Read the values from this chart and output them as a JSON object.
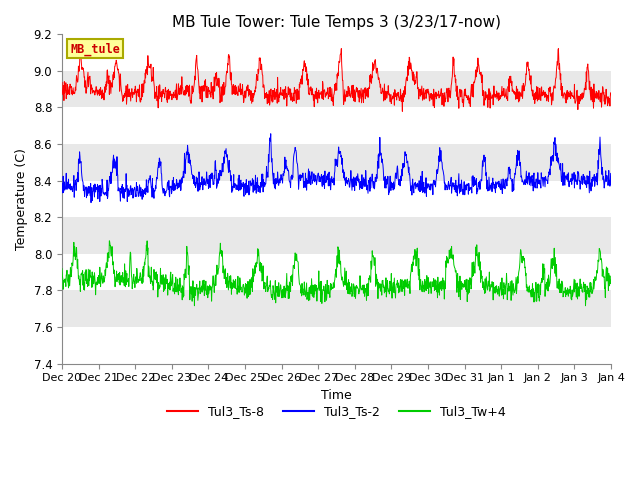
{
  "title": "MB Tule Tower: Tule Temps 3 (3/23/17-now)",
  "xlabel": "Time",
  "ylabel": "Temperature (C)",
  "ylim": [
    7.4,
    9.2
  ],
  "yticks": [
    7.4,
    7.6,
    7.8,
    8.0,
    8.2,
    8.4,
    8.6,
    8.8,
    9.0,
    9.2
  ],
  "xtick_labels": [
    "Dec 20",
    "Dec 21",
    "Dec 22",
    "Dec 23",
    "Dec 24",
    "Dec 25",
    "Dec 26",
    "Dec 27",
    "Dec 28",
    "Dec 29",
    "Dec 30",
    "Dec 31",
    "Jan 1",
    "Jan 2",
    "Jan 3",
    "Jan 4"
  ],
  "red_color": "#ff0000",
  "blue_color": "#0000ff",
  "green_color": "#00cc00",
  "legend_box_facecolor": "#ffff99",
  "legend_box_edgecolor": "#aaaa00",
  "legend_box_text": "MB_tule",
  "bg_band_color": "#e8e8e8",
  "title_fontsize": 11,
  "axis_fontsize": 9,
  "tick_fontsize": 8.5
}
